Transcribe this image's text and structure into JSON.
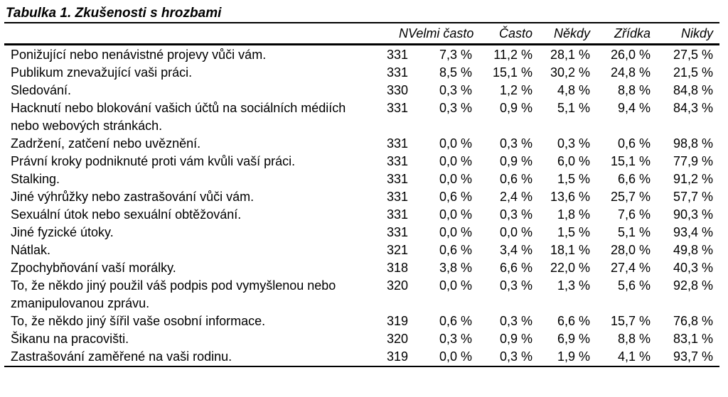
{
  "title": "Tabulka 1. Zkušenosti s hrozbami",
  "colors": {
    "background": "#ffffff",
    "text": "#000000",
    "rules": "#000000"
  },
  "table": {
    "columns": [
      "N",
      "Velmi\nčasto",
      "Často",
      "Někdy",
      "Zřídka",
      "Nikdy"
    ],
    "rows": [
      {
        "label": "Ponižující nebo nenávistné projevy vůči vám.",
        "n": "331",
        "values": [
          "7,3 %",
          "11,2 %",
          "28,1 %",
          "26,0 %",
          "27,5 %"
        ]
      },
      {
        "label": "Publikum znevažující vaši práci.",
        "n": "331",
        "values": [
          "8,5 %",
          "15,1 %",
          "30,2 %",
          "24,8 %",
          "21,5 %"
        ]
      },
      {
        "label": "Sledování.",
        "n": "330",
        "values": [
          "0,3 %",
          "1,2 %",
          "4,8 %",
          "8,8 %",
          "84,8 %"
        ]
      },
      {
        "label": "Hacknutí nebo blokování vašich účtů na sociálních médiích\nnebo webových stránkách.",
        "n": "331",
        "values": [
          "0,3 %",
          "0,9 %",
          "5,1 %",
          "9,4 %",
          "84,3 %"
        ]
      },
      {
        "label": "Zadržení, zatčení nebo uvěznění.",
        "n": "331",
        "values": [
          "0,0 %",
          "0,3 %",
          "0,3 %",
          "0,6 %",
          "98,8 %"
        ]
      },
      {
        "label": "Právní kroky podniknuté proti vám kvůli vaší práci.",
        "n": "331",
        "values": [
          "0,0 %",
          "0,9 %",
          "6,0 %",
          "15,1 %",
          "77,9 %"
        ]
      },
      {
        "label": "Stalking.",
        "n": "331",
        "values": [
          "0,0 %",
          "0,6 %",
          "1,5 %",
          "6,6 %",
          "91,2 %"
        ]
      },
      {
        "label": "Jiné výhrůžky nebo zastrašování vůči vám.",
        "n": "331",
        "values": [
          "0,6 %",
          "2,4 %",
          "13,6 %",
          "25,7 %",
          "57,7 %"
        ]
      },
      {
        "label": "Sexuální útok nebo sexuální obtěžování.",
        "n": "331",
        "values": [
          "0,0 %",
          "0,3 %",
          "1,8 %",
          "7,6 %",
          "90,3 %"
        ]
      },
      {
        "label": "Jiné fyzické útoky.",
        "n": "331",
        "values": [
          "0,0 %",
          "0,0 %",
          "1,5 %",
          "5,1 %",
          "93,4 %"
        ]
      },
      {
        "label": "Nátlak.",
        "n": "321",
        "values": [
          "0,6 %",
          "3,4 %",
          "18,1 %",
          "28,0 %",
          "49,8 %"
        ]
      },
      {
        "label": "Zpochybňování vaší morálky.",
        "n": "318",
        "values": [
          "3,8 %",
          "6,6 %",
          "22,0 %",
          "27,4 %",
          "40,3 %"
        ]
      },
      {
        "label": "To, že někdo jiný použil váš podpis pod vymyšlenou nebo\nzmanipulovanou zprávu.",
        "n": "320",
        "values": [
          "0,0 %",
          "0,3 %",
          "1,3 %",
          "5,6 %",
          "92,8 %"
        ]
      },
      {
        "label": "To, že někdo jiný šířil vaše osobní informace.",
        "n": "319",
        "values": [
          "0,6 %",
          "0,3 %",
          "6,6 %",
          "15,7 %",
          "76,8 %"
        ]
      },
      {
        "label": "Šikanu na pracovišti.",
        "n": "320",
        "values": [
          "0,3 %",
          "0,9 %",
          "6,9 %",
          "8,8 %",
          "83,1 %"
        ]
      },
      {
        "label": "Zastrašování zaměřené na vaši rodinu.",
        "n": "319",
        "values": [
          "0,0 %",
          "0,3 %",
          "1,9 %",
          "4,1 %",
          "93,7 %"
        ]
      }
    ]
  }
}
